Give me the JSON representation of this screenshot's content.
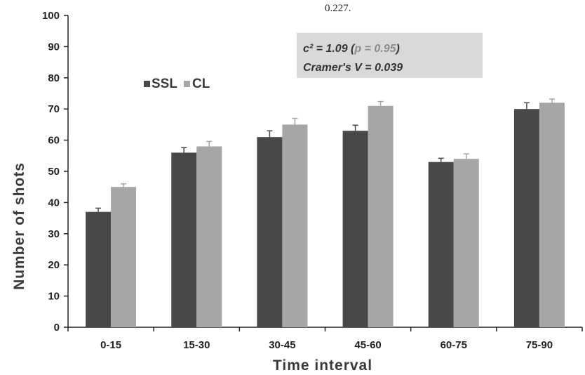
{
  "top_fragment": "0.227.",
  "stats": {
    "chi": "c² = 1.09 (",
    "p": "p = 0.95",
    "chi_close": ")",
    "cramer": "Cramer's V = 0.039"
  },
  "colors": {
    "SSL": "#48484a",
    "CL": "#a6a6a8",
    "stat_box": "#d9d9d9",
    "axis": "#222222"
  },
  "chart_data": {
    "type": "bar",
    "xlabel": "Time interval",
    "ylabel": "Number of shots",
    "ylim": [
      0,
      100
    ],
    "yticks": [
      0,
      10,
      20,
      30,
      40,
      50,
      60,
      70,
      80,
      90,
      100
    ],
    "categories": [
      "0-15",
      "15-30",
      "30-45",
      "45-60",
      "60-75",
      "75-90"
    ],
    "series": [
      {
        "name": "SSL",
        "values": [
          37,
          56,
          61,
          63,
          53,
          70
        ],
        "error": [
          1.2,
          1.6,
          2.0,
          1.8,
          1.2,
          2.0
        ]
      },
      {
        "name": "CL",
        "values": [
          45,
          58,
          65,
          71,
          54,
          72
        ],
        "error": [
          1.0,
          1.6,
          2.0,
          1.4,
          1.6,
          1.2
        ]
      }
    ],
    "legend_position": "top-left",
    "grid": false
  }
}
